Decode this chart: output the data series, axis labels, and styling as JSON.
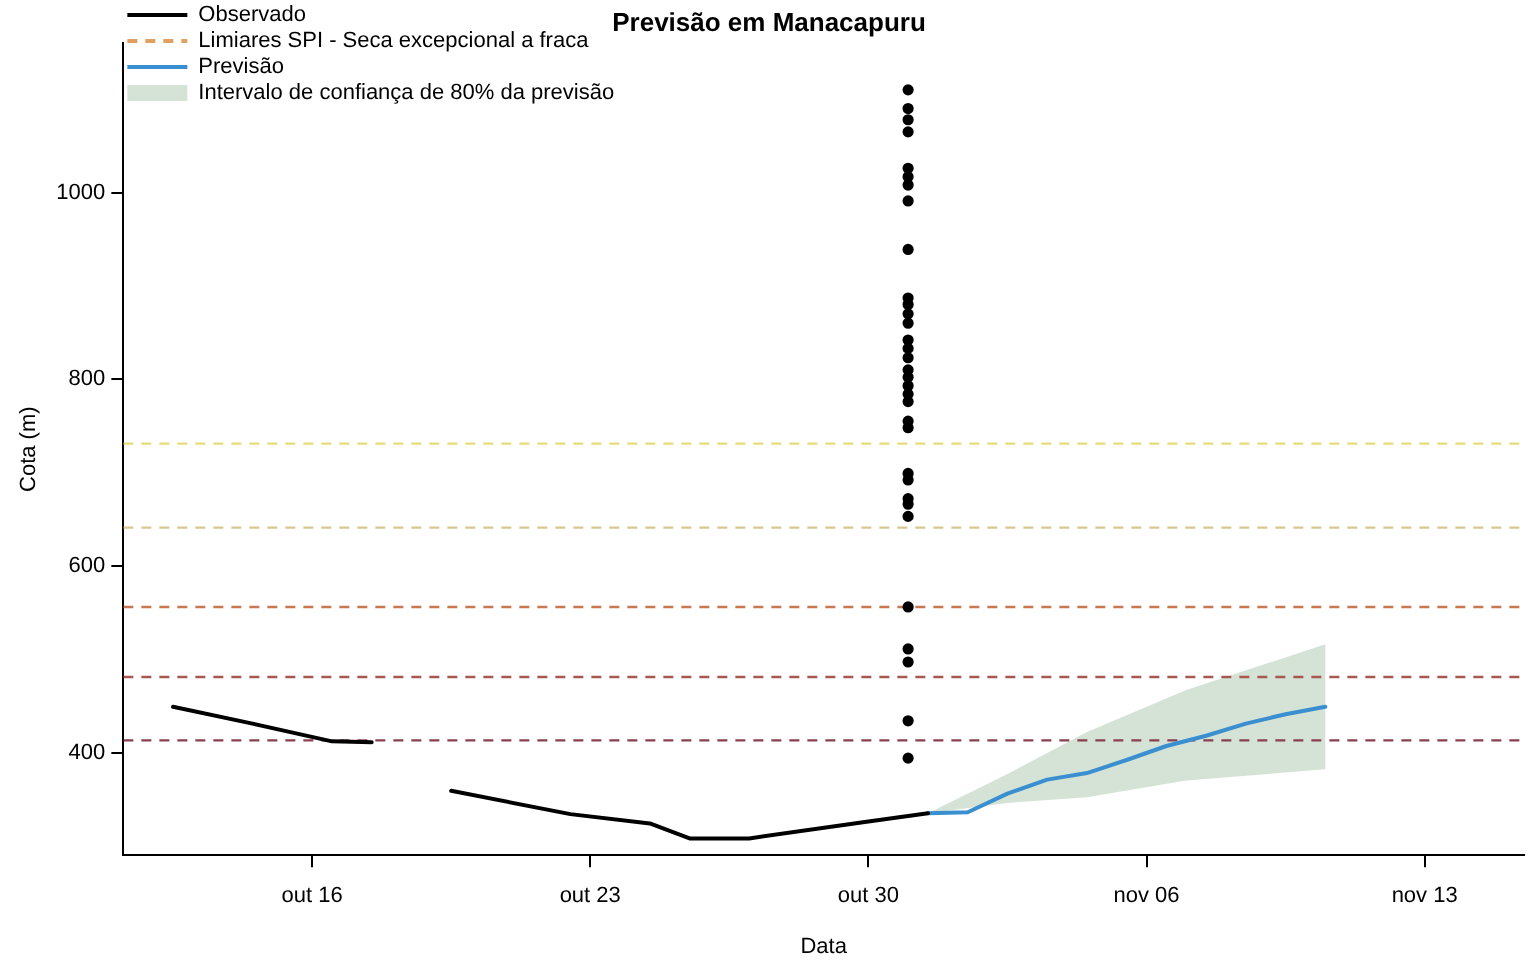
{
  "chart_data": {
    "type": "line",
    "title": "Previsão em Manacapuru",
    "xlabel": "Data",
    "ylabel": "Cota (m)",
    "xlim": [
      "--10-11T06:00",
      "--11-15T12:00"
    ],
    "ylim": [
      290,
      1160
    ],
    "xticks": [
      {
        "value": "--10-16",
        "label": "out 16"
      },
      {
        "value": "--10-23",
        "label": "out 23"
      },
      {
        "value": "--10-30",
        "label": "out 30"
      },
      {
        "value": "--11-06",
        "label": "nov 06"
      },
      {
        "value": "--11-13",
        "label": "nov 13"
      }
    ],
    "yticks": [
      400,
      600,
      800,
      1000
    ],
    "grid": false,
    "legend": "top left",
    "series": [
      {
        "name": "Observado",
        "color": "#000000",
        "line_style": "solid",
        "x": [
          "--10-12T12:00",
          "--10-14T12:00",
          "--10-16T12:00",
          "--10-17T12:00",
          "--10-18T12:00",
          "--10-19T12:00",
          "--10-22T12:00",
          "--10-24T12:00",
          "--10-25T12:00",
          "--10-27",
          "--10-30",
          "--10-31T12:00"
        ],
        "values": [
          449,
          431,
          412,
          411,
          null,
          359,
          334,
          324,
          308,
          308,
          326,
          335
        ]
      },
      {
        "name": "Limiares SPI - Seca excepcional a fraca",
        "color": "#e0a060",
        "line_style": "dashed"
      },
      {
        "name": "Previsão",
        "color": "#3a8fd0",
        "line_style": "solid",
        "x": [
          "--10-31T12:00",
          "--11-01T12:00",
          "--11-02T12:00",
          "--11-03T12:00",
          "--11-04T12:00",
          "--11-05T12:00",
          "--11-06T12:00",
          "--11-07T12:00",
          "--11-08T12:00",
          "--11-09T12:00",
          "--11-10T12:00"
        ],
        "values": [
          335,
          336,
          356,
          371,
          378,
          392,
          407,
          418,
          431,
          441,
          449
        ]
      },
      {
        "name": "Intervalo de confiança de 80% da previsão",
        "type": "area",
        "color": "#d5e3d6",
        "x": [
          "--10-31T12:00",
          "--11-02T12:00",
          "--11-04T12:00",
          "--11-07",
          "--11-10T12:00"
        ],
        "values": [
          null,
          null,
          null,
          null,
          null
        ],
        "lower": [
          335,
          346,
          352,
          370,
          382
        ],
        "upper": [
          335,
          377,
          422,
          467,
          516
        ]
      },
      {
        "type": "scatter",
        "color": "#000000",
        "marker": "circle",
        "x": [
          "--10-31",
          "--10-31",
          "--10-31",
          "--10-31",
          "--10-31",
          "--10-31",
          "--10-31",
          "--10-31",
          "--10-31",
          "--10-31",
          "--10-31",
          "--10-31",
          "--10-31",
          "--10-31",
          "--10-31",
          "--10-31",
          "--10-31",
          "--10-31",
          "--10-31",
          "--10-31",
          "--10-31",
          "--10-31",
          "--10-31",
          "--10-31",
          "--10-31",
          "--10-31",
          "--10-31",
          "--10-31",
          "--10-31",
          "--10-31",
          "--10-31",
          "--10-31",
          "--10-31"
        ],
        "values": [
          1110,
          1090,
          1078,
          1065,
          1026,
          1017,
          1008,
          991,
          939,
          887,
          880,
          870,
          860,
          842,
          833,
          823,
          810,
          802,
          793,
          784,
          776,
          755,
          748,
          699,
          692,
          672,
          666,
          653,
          556,
          511,
          497,
          434,
          394
        ]
      }
    ],
    "ref_lines": [
      {
        "axis": "y",
        "value": 731,
        "color": "#e6dc78",
        "line_style": "dashed"
      },
      {
        "axis": "y",
        "value": 641,
        "color": "#d8c890",
        "line_style": "dashed"
      },
      {
        "axis": "y",
        "value": 556,
        "color": "#c87850",
        "line_style": "dashed"
      },
      {
        "axis": "y",
        "value": 481,
        "color": "#a85850",
        "line_style": "dashed"
      },
      {
        "axis": "y",
        "value": 413,
        "color": "#884050",
        "line_style": "dashed"
      }
    ]
  }
}
